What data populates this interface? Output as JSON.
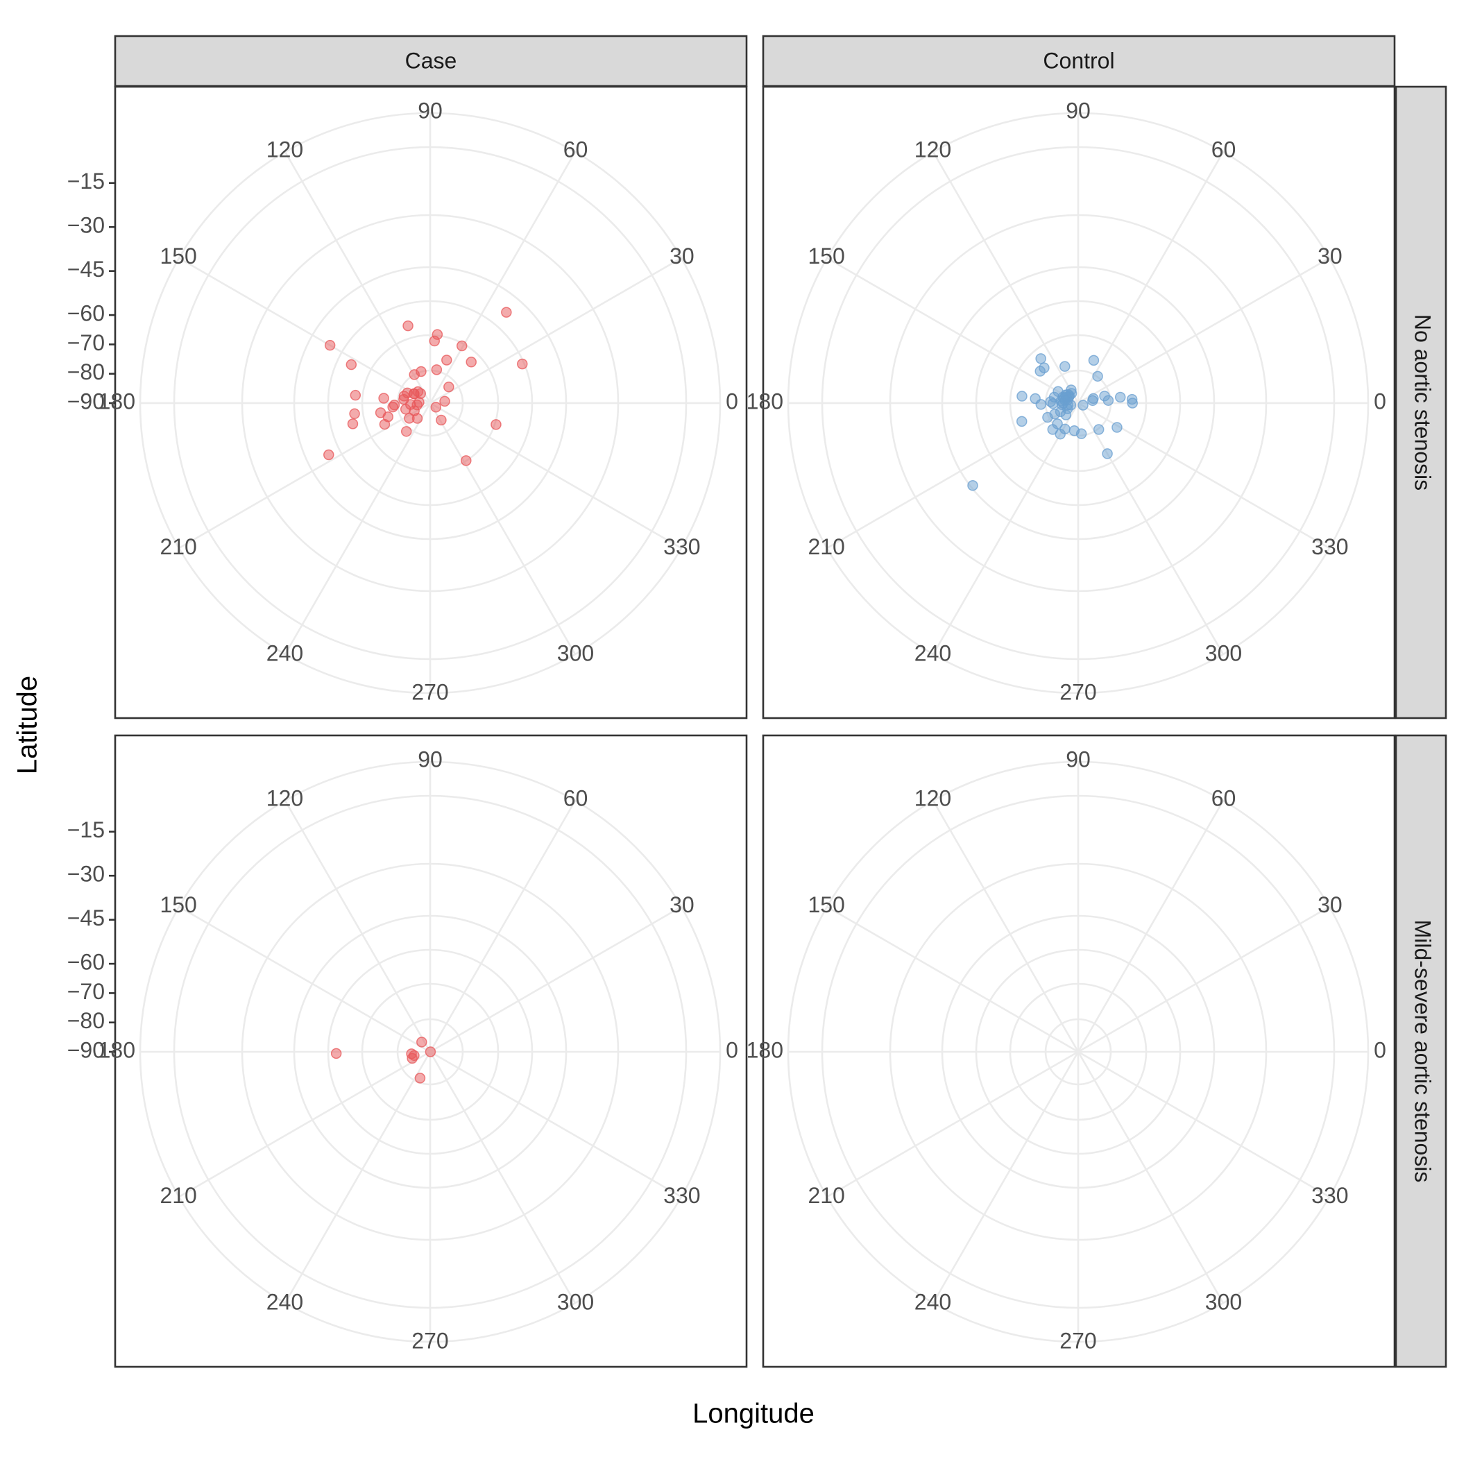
{
  "chart_data": {
    "type": "scatter",
    "coord": "polar",
    "xlabel": "Longitude",
    "ylabel": "Latitude",
    "columns": [
      "Case",
      "Control"
    ],
    "rows": [
      "No aortic stenosis",
      "Mild-severe aortic stenosis"
    ],
    "angular_ticks": [
      "0",
      "30",
      "60",
      "90",
      "120",
      "150",
      "180",
      "210",
      "240",
      "270",
      "300",
      "330"
    ],
    "radial_ticks": [
      "−15",
      "−30",
      "−45",
      "−60",
      "−70",
      "−80",
      "−90"
    ],
    "radial_tick_values": [
      -15,
      -30,
      -45,
      -60,
      -70,
      -80,
      -90
    ],
    "grid": true,
    "colors": {
      "Case": "#e8575a",
      "Control": "#6a9fd0"
    },
    "series": [
      {
        "name": "Case",
        "column": 0,
        "row": 0,
        "points": [
          {
            "lon": 50,
            "lat": -49.6
          },
          {
            "lon": 150,
            "lat": -50.6
          },
          {
            "lon": 207,
            "lat": -51.2
          },
          {
            "lon": 23,
            "lat": -55.9
          },
          {
            "lon": 154,
            "lat": -60.1
          },
          {
            "lon": 106,
            "lat": -62.6
          },
          {
            "lon": 195,
            "lat": -62.7
          },
          {
            "lon": 188,
            "lat": -64.0
          },
          {
            "lon": 174,
            "lat": -64.4
          },
          {
            "lon": 342,
            "lat": -66.4
          },
          {
            "lon": 84,
            "lat": -66.5
          },
          {
            "lon": 61,
            "lat": -67.7
          },
          {
            "lon": 69,
            "lat": -74.3
          },
          {
            "lon": 86,
            "lat": -68.8
          },
          {
            "lon": 45,
            "lat": -70.2
          },
          {
            "lon": 302,
            "lat": -66.9
          },
          {
            "lon": 198,
            "lat": -74.9
          },
          {
            "lon": 205,
            "lat": -72.9
          },
          {
            "lon": 191,
            "lat": -72.8
          },
          {
            "lon": 174,
            "lat": -74.1
          },
          {
            "lon": 186,
            "lat": -77.2
          },
          {
            "lon": 183,
            "lat": -77.8
          },
          {
            "lon": 230,
            "lat": -77.4
          },
          {
            "lon": 119,
            "lat": -78.9
          },
          {
            "lon": 106,
            "lat": -78.8
          },
          {
            "lon": 79,
            "lat": -78.4
          },
          {
            "lon": 41,
            "lat": -81.6
          },
          {
            "lon": 165,
            "lat": -80.8
          },
          {
            "lon": 156,
            "lat": -81.5
          },
          {
            "lon": 150,
            "lat": -83.7
          },
          {
            "lon": 137,
            "lat": -84.3
          },
          {
            "lon": 135,
            "lat": -85.4
          },
          {
            "lon": 150,
            "lat": -83.6
          },
          {
            "lon": 172,
            "lat": -80.9
          },
          {
            "lon": 194,
            "lat": -81.4
          },
          {
            "lon": 176,
            "lat": -86.2
          },
          {
            "lon": 7,
            "lat": -85.0
          },
          {
            "lon": 303,
            "lat": -83.1
          },
          {
            "lon": 216,
            "lat": -81.2
          },
          {
            "lon": 230,
            "lat": -83.2
          },
          {
            "lon": 188,
            "lat": -85.5
          },
          {
            "lon": 206,
            "lat": -84.0
          },
          {
            "lon": 184,
            "lat": -83.3
          },
          {
            "lon": 325,
            "lat": -87.6
          }
        ]
      },
      {
        "name": "Control",
        "column": 1,
        "row": 0,
        "points": [
          {
            "lon": 218,
            "lat": -44.4
          },
          {
            "lon": 0,
            "lat": -71.5
          },
          {
            "lon": 4,
            "lat": -71.6
          },
          {
            "lon": 300,
            "lat": -70.1
          },
          {
            "lon": 130,
            "lat": -70.2
          },
          {
            "lon": 140,
            "lat": -73.1
          },
          {
            "lon": 173,
            "lat": -70.7
          },
          {
            "lon": 198,
            "lat": -69.8
          },
          {
            "lon": 70,
            "lat": -74.5
          },
          {
            "lon": 134,
            "lat": -73.3
          },
          {
            "lon": 328,
            "lat": -74.4
          },
          {
            "lon": 174,
            "lat": -75.3
          },
          {
            "lon": 8,
            "lat": -75.5
          },
          {
            "lon": 110,
            "lat": -76.7
          },
          {
            "lon": 182,
            "lat": -77.3
          },
          {
            "lon": 240,
            "lat": -77.8
          },
          {
            "lon": 54,
            "lat": -78.7
          },
          {
            "lon": 226,
            "lat": -77.5
          },
          {
            "lon": 205,
            "lat": -78.5
          },
          {
            "lon": 276,
            "lat": -79.5
          },
          {
            "lon": 15,
            "lat": -80.7
          },
          {
            "lon": 5,
            "lat": -79.7
          },
          {
            "lon": 308,
            "lat": -78.6
          },
          {
            "lon": 262,
            "lat": -80.5
          },
          {
            "lon": 243,
            "lat": -80.1
          },
          {
            "lon": 177,
            "lat": -80.6
          },
          {
            "lon": 181,
            "lat": -81.4
          },
          {
            "lon": 166,
            "lat": -81.6
          },
          {
            "lon": 150,
            "lat": -82.1
          },
          {
            "lon": 205,
            "lat": -81.2
          },
          {
            "lon": 225,
            "lat": -80.0
          },
          {
            "lon": 206,
            "lat": -83.3
          },
          {
            "lon": 173,
            "lat": -84.1
          },
          {
            "lon": 186,
            "lat": -84.5
          },
          {
            "lon": 118,
            "lat": -84.9
          },
          {
            "lon": 140,
            "lat": -85.4
          },
          {
            "lon": 140,
            "lat": -86.1
          },
          {
            "lon": 124,
            "lat": -86.0
          },
          {
            "lon": 147,
            "lat": -84.9
          },
          {
            "lon": 147,
            "lat": -86.2
          },
          {
            "lon": 159,
            "lat": -85.0
          },
          {
            "lon": 159,
            "lat": -84.4
          },
          {
            "lon": 180,
            "lat": -84.9
          },
          {
            "lon": 17,
            "lat": -84.6
          },
          {
            "lon": 224,
            "lat": -84.2
          },
          {
            "lon": 208,
            "lat": -85.9
          },
          {
            "lon": 190,
            "lat": -86.4
          },
          {
            "lon": 162,
            "lat": -86.3
          },
          {
            "lon": 153,
            "lat": -85.6
          },
          {
            "lon": 168,
            "lat": -85.4
          },
          {
            "lon": 10,
            "lat": -85.0
          },
          {
            "lon": 195,
            "lat": -87.4
          },
          {
            "lon": 337,
            "lat": -88.2
          }
        ]
      },
      {
        "name": "Case",
        "column": 0,
        "row": 1,
        "points": [
          {
            "lon": 181,
            "lat": -58.0
          },
          {
            "lon": 193,
            "lat": -84.4
          },
          {
            "lon": 186,
            "lat": -83.6
          },
          {
            "lon": 200,
            "lat": -83.5
          },
          {
            "lon": 131,
            "lat": -85.6
          },
          {
            "lon": 249,
            "lat": -80.4
          },
          {
            "lon": 0,
            "lat": -89.9
          }
        ]
      }
    ]
  }
}
